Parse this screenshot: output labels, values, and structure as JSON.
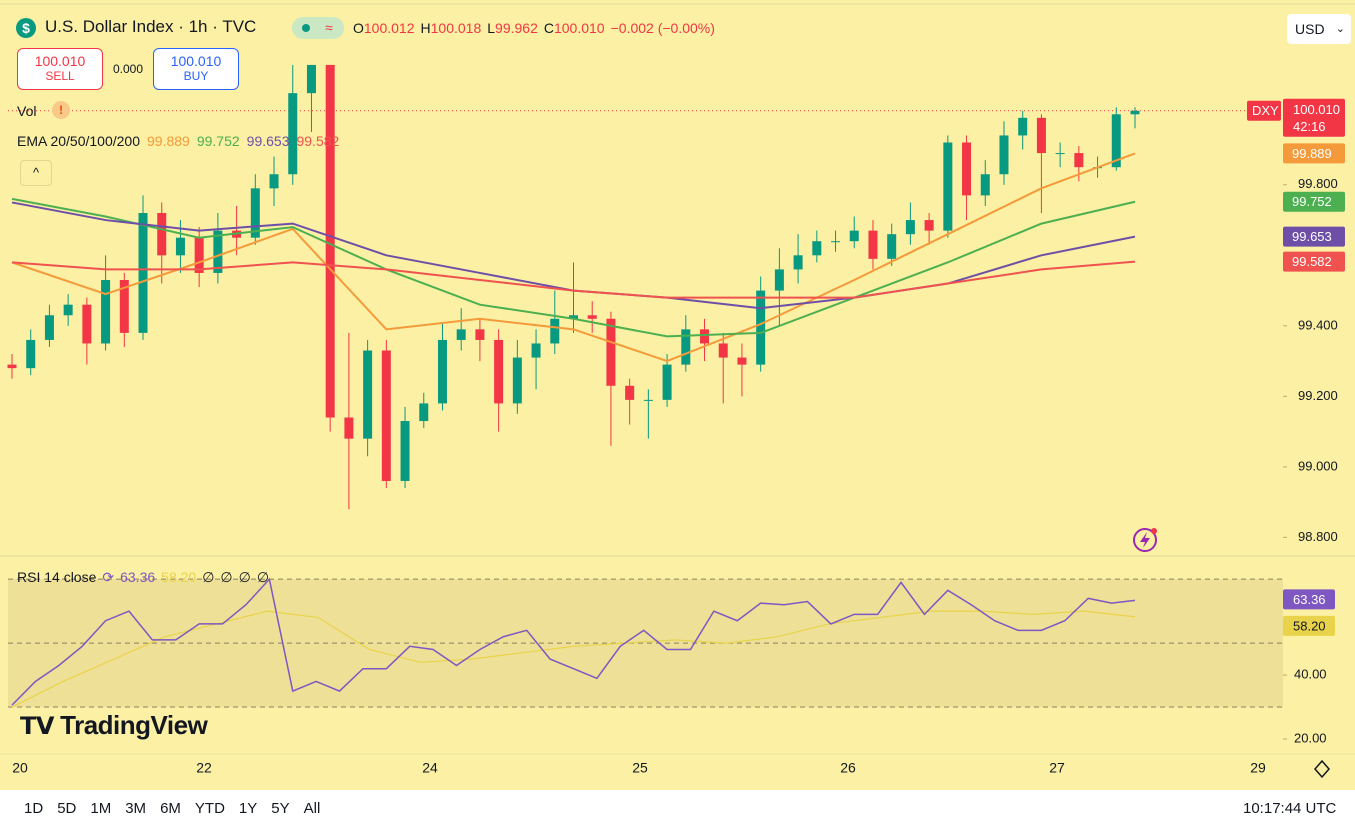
{
  "header": {
    "title": "U.S. Dollar Index · 1h · TVC",
    "ohlc": [
      {
        "key": "O",
        "value": "100.012"
      },
      {
        "key": "H",
        "value": "100.018"
      },
      {
        "key": "L",
        "value": "99.962"
      },
      {
        "key": "C",
        "value": "100.010"
      }
    ],
    "change": "−0.002 (−0.00%)",
    "currency": "USD"
  },
  "trade": {
    "sell_price": "100.010",
    "sell": "SELL",
    "spread": "0.000",
    "buy_price": "100.010",
    "buy": "BUY"
  },
  "indicators": {
    "vol": "Vol",
    "ema_label": "EMA 20/50/100/200",
    "rsi_label": "RSI 14 close",
    "rsi_extra": [
      "∅",
      "∅",
      "∅",
      "∅"
    ]
  },
  "brand": "TradingView",
  "chart_data": {
    "type": "candlestick",
    "symbol": "DXY",
    "countdown": "42:16",
    "last_label": "100.010",
    "up_color": "#089981",
    "down_color": "#f23645",
    "ylim": [
      98.75,
      100.31
    ],
    "yticks": [
      {
        "value": 99.8,
        "label": "99.800"
      },
      {
        "value": 99.4,
        "label": "99.400"
      },
      {
        "value": 99.2,
        "label": "99.200"
      },
      {
        "value": 99.0,
        "label": "99.000"
      },
      {
        "value": 98.8,
        "label": "98.800"
      }
    ],
    "x_labels": [
      "20",
      "22",
      "24",
      "25",
      "26",
      "27",
      "29"
    ],
    "candles": [
      [
        99.29,
        99.32,
        99.25,
        99.28
      ],
      [
        99.28,
        99.39,
        99.26,
        99.36
      ],
      [
        99.36,
        99.46,
        99.34,
        99.43
      ],
      [
        99.43,
        99.49,
        99.4,
        99.46
      ],
      [
        99.46,
        99.48,
        99.29,
        99.35
      ],
      [
        99.35,
        99.6,
        99.33,
        99.53
      ],
      [
        99.53,
        99.55,
        99.34,
        99.38
      ],
      [
        99.38,
        99.77,
        99.36,
        99.72
      ],
      [
        99.72,
        99.75,
        99.52,
        99.6
      ],
      [
        99.6,
        99.7,
        99.55,
        99.65
      ],
      [
        99.65,
        99.68,
        99.51,
        99.55
      ],
      [
        99.55,
        99.72,
        99.52,
        99.67
      ],
      [
        99.67,
        99.74,
        99.6,
        99.65
      ],
      [
        99.65,
        99.83,
        99.63,
        99.79
      ],
      [
        99.79,
        99.88,
        99.74,
        99.83
      ],
      [
        99.83,
        100.14,
        99.8,
        100.06
      ],
      [
        100.06,
        100.14,
        99.95,
        100.14
      ],
      [
        100.14,
        100.14,
        99.1,
        99.14
      ],
      [
        99.14,
        99.38,
        98.88,
        99.08
      ],
      [
        99.08,
        99.36,
        99.03,
        99.33
      ],
      [
        99.33,
        99.36,
        98.94,
        98.96
      ],
      [
        98.96,
        99.17,
        98.94,
        99.13
      ],
      [
        99.13,
        99.21,
        99.11,
        99.18
      ],
      [
        99.18,
        99.41,
        99.16,
        99.36
      ],
      [
        99.36,
        99.45,
        99.33,
        99.39
      ],
      [
        99.39,
        99.42,
        99.3,
        99.36
      ],
      [
        99.36,
        99.39,
        99.1,
        99.18
      ],
      [
        99.18,
        99.36,
        99.15,
        99.31
      ],
      [
        99.31,
        99.39,
        99.22,
        99.35
      ],
      [
        99.35,
        99.5,
        99.32,
        99.42
      ],
      [
        99.42,
        99.58,
        99.38,
        99.43
      ],
      [
        99.43,
        99.47,
        99.38,
        99.42
      ],
      [
        99.42,
        99.44,
        99.06,
        99.23
      ],
      [
        99.23,
        99.25,
        99.12,
        99.19
      ],
      [
        99.19,
        99.22,
        99.08,
        99.19
      ],
      [
        99.19,
        99.32,
        99.17,
        99.29
      ],
      [
        99.29,
        99.43,
        99.27,
        99.39
      ],
      [
        99.39,
        99.42,
        99.3,
        99.35
      ],
      [
        99.35,
        99.38,
        99.18,
        99.31
      ],
      [
        99.31,
        99.35,
        99.2,
        99.29
      ],
      [
        99.29,
        99.54,
        99.27,
        99.5
      ],
      [
        99.5,
        99.62,
        99.4,
        99.56
      ],
      [
        99.56,
        99.66,
        99.52,
        99.6
      ],
      [
        99.6,
        99.67,
        99.58,
        99.64
      ],
      [
        99.64,
        99.67,
        99.61,
        99.64
      ],
      [
        99.64,
        99.71,
        99.62,
        99.67
      ],
      [
        99.67,
        99.7,
        99.56,
        99.59
      ],
      [
        99.59,
        99.69,
        99.57,
        99.66
      ],
      [
        99.66,
        99.75,
        99.63,
        99.7
      ],
      [
        99.7,
        99.72,
        99.63,
        99.67
      ],
      [
        99.67,
        99.94,
        99.65,
        99.92
      ],
      [
        99.92,
        99.94,
        99.7,
        99.77
      ],
      [
        99.77,
        99.87,
        99.74,
        99.83
      ],
      [
        99.83,
        99.98,
        99.8,
        99.94
      ],
      [
        99.94,
        100.01,
        99.9,
        99.99
      ],
      [
        99.99,
        100.0,
        99.72,
        99.89
      ],
      [
        99.89,
        99.92,
        99.85,
        99.89
      ],
      [
        99.89,
        99.91,
        99.81,
        99.85
      ],
      [
        99.85,
        99.88,
        99.82,
        99.85
      ],
      [
        99.85,
        100.02,
        99.84,
        100.0
      ],
      [
        100.0,
        100.02,
        99.96,
        100.01
      ]
    ],
    "series": [
      {
        "color": "#f59a3a",
        "values": [
          99.58,
          99.49,
          99.58,
          99.675,
          99.39,
          99.42,
          99.39,
          99.3,
          99.405,
          99.53,
          99.66,
          99.79,
          99.889
        ]
      },
      {
        "color": "#4caf50",
        "values": [
          99.76,
          99.71,
          99.65,
          99.68,
          99.56,
          99.46,
          99.42,
          99.37,
          99.38,
          99.48,
          99.58,
          99.69,
          99.752
        ]
      },
      {
        "color": "#6e4fa8",
        "values": [
          99.75,
          99.7,
          99.67,
          99.69,
          99.6,
          99.55,
          99.5,
          99.48,
          99.45,
          99.48,
          99.52,
          99.6,
          99.653
        ]
      },
      {
        "color": "#f0524f",
        "values": [
          99.58,
          99.56,
          99.56,
          99.58,
          99.56,
          99.53,
          99.5,
          99.48,
          99.48,
          99.48,
          99.52,
          99.56,
          99.582
        ]
      }
    ],
    "rsi": {
      "ylim": [
        15,
        76
      ],
      "yticks": [
        {
          "value": 40,
          "label": "40.00"
        },
        {
          "value": 20,
          "label": "20.00"
        }
      ],
      "levels": [
        70,
        50,
        30
      ],
      "series": [
        {
          "color": "#7e57c2",
          "values": [
            30.6,
            38,
            43,
            49,
            57,
            60,
            51,
            51,
            56,
            56,
            62,
            70,
            35,
            38,
            35,
            42,
            42,
            49,
            48,
            43,
            48,
            52,
            54,
            45,
            42,
            39,
            49,
            54,
            48,
            48,
            60,
            57,
            62.5,
            62,
            63,
            56,
            59,
            59,
            69,
            59,
            66.5,
            62,
            57,
            54,
            54,
            57,
            64,
            62.5,
            63.36
          ]
        },
        {
          "color": "#e9d34a",
          "values": [
            30,
            38,
            45,
            52,
            56,
            60,
            58,
            48,
            44,
            45,
            47,
            49,
            50,
            51,
            50,
            52,
            56,
            58,
            60,
            60,
            59,
            60,
            58.2
          ],
          "last_label": "58.20"
        }
      ]
    }
  },
  "footer": {
    "ranges": [
      "1D",
      "5D",
      "1M",
      "3M",
      "6M",
      "YTD",
      "1Y",
      "5Y",
      "All"
    ],
    "time": "10:17:44 UTC"
  }
}
